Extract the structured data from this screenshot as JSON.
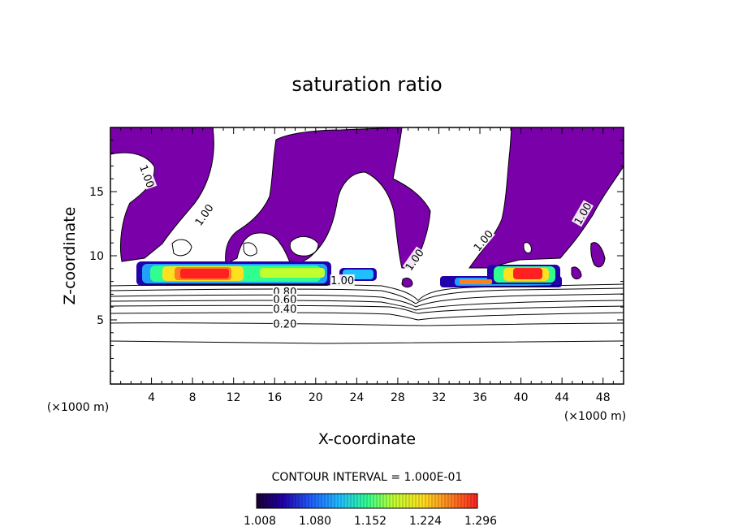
{
  "chart_data": {
    "type": "contour",
    "title": "saturation ratio",
    "xlabel": "X-coordinate",
    "ylabel": "Z-coordinate",
    "x_unit_left": "(×1000 m)",
    "x_unit_right": "(×1000 m)",
    "xlim": [
      0,
      50
    ],
    "ylim": [
      0,
      20
    ],
    "x_ticks": [
      4,
      8,
      12,
      16,
      20,
      24,
      28,
      32,
      36,
      40,
      44,
      48
    ],
    "y_ticks": [
      5,
      10,
      15
    ],
    "contour_interval_label": "CONTOUR INTERVAL = 1.000E-01",
    "contour_labels": [
      {
        "text": "1.00",
        "x": 3.6,
        "y": 16.2,
        "angle": 70
      },
      {
        "text": "1.00",
        "x": 9.1,
        "y": 13.2,
        "angle": -55
      },
      {
        "text": "1.00",
        "x": 29.6,
        "y": 9.7,
        "angle": -55
      },
      {
        "text": "1.00",
        "x": 36.3,
        "y": 11.2,
        "angle": -50
      },
      {
        "text": "1.00",
        "x": 46.0,
        "y": 13.3,
        "angle": -60
      },
      {
        "text": "1.00",
        "x": 22.6,
        "y": 8.1,
        "angle": 0
      },
      {
        "text": "0.80",
        "x": 17.0,
        "y": 7.2,
        "angle": 0
      },
      {
        "text": "0.60",
        "x": 17.0,
        "y": 6.6,
        "angle": 0
      },
      {
        "text": "0.40",
        "x": 17.0,
        "y": 5.9,
        "angle": 0
      },
      {
        "text": "0.20",
        "x": 17.0,
        "y": 4.7,
        "angle": 0
      }
    ],
    "colorbar": {
      "ticks": [
        "1.008",
        "1.080",
        "1.152",
        "1.224",
        "1.296"
      ],
      "colors": [
        "#1a0033",
        "#2200aa",
        "#2060ff",
        "#20c0ff",
        "#30ff90",
        "#c0ff30",
        "#ffe020",
        "#ff8020",
        "#ff2020"
      ]
    },
    "supersaturation_fill": "#7a00aa"
  }
}
